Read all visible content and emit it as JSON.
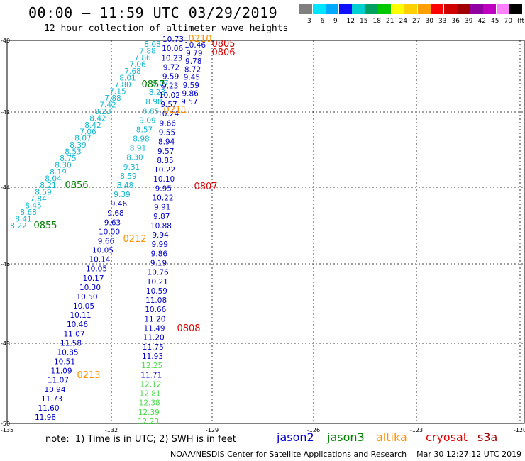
{
  "header": {
    "title": "00:00 – 11:59 UTC 03/29/2019",
    "subtitle": "12 hour collection of altimeter wave heights"
  },
  "color_scale": {
    "colors": [
      "#7f7f7f",
      "#00e5ff",
      "#00a8ff",
      "#1010ff",
      "#00d0d0",
      "#00a060",
      "#00c800",
      "#ffff00",
      "#ffd000",
      "#ffa000",
      "#ff0000",
      "#d00000",
      "#a00000",
      "#9000a0",
      "#c000c0",
      "#ff80ff",
      "#000000"
    ],
    "labels": [
      "3",
      "6",
      "9",
      "12",
      "15",
      "18",
      "21",
      "24",
      "27",
      "30",
      "33",
      "36",
      "39",
      "42",
      "45",
      "70",
      "(ft)"
    ]
  },
  "axes": {
    "lat_labels": [
      "-40",
      "-42",
      "-44",
      "-46",
      "-48",
      "-50"
    ],
    "lon_labels": [
      "-135",
      "-132",
      "-129",
      "-126",
      "-123",
      "-120"
    ]
  },
  "tracks": {
    "track_a": {
      "color": "#10b8d0",
      "values": [
        "8.08",
        "7.88",
        "7.86",
        "7.06",
        "7.68",
        "8.01",
        "7.80",
        "7.15",
        "7.88",
        "7.42",
        "8.23",
        "8.42",
        "8.42",
        "7.06",
        "8.07",
        "8.39",
        "8.53",
        "8.75",
        "8.30",
        "8.19",
        "8.04",
        "8.21",
        "8.59",
        "7.84",
        "8.45",
        "8.68",
        "8.41",
        "8.22"
      ]
    },
    "track_b": {
      "color_upper": "#10b8d0",
      "color_lower": "#0000c8",
      "values": [
        "8.07",
        "8.23",
        "8.98",
        "8.85",
        "9.09",
        "8.57",
        "8.98",
        "8.91",
        "8.30",
        "9.31",
        "8.59",
        "8.48",
        "9.39",
        "9.46",
        "9.68",
        "9.63",
        "10.00",
        "9.66",
        "10.05",
        "10.14",
        "10.05",
        "10.17",
        "10.30",
        "10.50",
        "10.05",
        "10.11",
        "10.46",
        "11.07",
        "11.58",
        "10.85",
        "10.51",
        "11.09",
        "11.07",
        "10.94",
        "11.73",
        "11.60",
        "11.98"
      ]
    },
    "track_c": {
      "color_upper": "#0000c8",
      "color_lower": "#4ad84a",
      "values": [
        "10.73",
        "10.06",
        "10.23",
        "9.72",
        "9.59",
        "9.23",
        "10.02",
        "9.57",
        "10.24",
        "9.66",
        "9.55",
        "8.94",
        "9.57",
        "8.85",
        "10.22",
        "10.10",
        "9.95",
        "10.22",
        "9.91",
        "9.87",
        "10.88",
        "9.94",
        "9.99",
        "9.86",
        "9.19",
        "10.76",
        "10.21",
        "10.59",
        "11.08",
        "10.66",
        "11.20",
        "11.49",
        "11.20",
        "11.75",
        "11.93",
        "12.25",
        "11.71",
        "12.12",
        "12.81",
        "12.38",
        "12.39",
        "12.23"
      ]
    },
    "track_d": {
      "color": "#0000c8",
      "values": [
        "10.46",
        "9.79",
        "9.78",
        "8.72",
        "9.45",
        "9.59",
        "9.86",
        "9.57"
      ]
    }
  },
  "time_labels": [
    {
      "text": "0210",
      "color": "#ff9000"
    },
    {
      "text": "0805",
      "color": "#e00000"
    },
    {
      "text": "0806",
      "color": "#e00000"
    },
    {
      "text": "0857",
      "color": "#008000"
    },
    {
      "text": "0211",
      "color": "#ff9000"
    },
    {
      "text": "0856",
      "color": "#008000"
    },
    {
      "text": "0807",
      "color": "#e00000"
    },
    {
      "text": "0855",
      "color": "#008000"
    },
    {
      "text": "0212",
      "color": "#ff9000"
    },
    {
      "text": "0808",
      "color": "#e00000"
    },
    {
      "text": "0213",
      "color": "#ff9000"
    }
  ],
  "note": "note:  1) Time is in UTC; 2) SWH is in feet",
  "legend": [
    {
      "name": "jason2",
      "color": "#0000d0"
    },
    {
      "name": "jason3",
      "color": "#008000"
    },
    {
      "name": "altika",
      "color": "#ff9000"
    },
    {
      "name": "cryosat",
      "color": "#e00000"
    },
    {
      "name": "s3a",
      "color": "#a00000"
    }
  ],
  "credit": "NOAA/NESDIS Center for Satellite Applications and Research    Mar 30 12:27:12 UTC 2019"
}
